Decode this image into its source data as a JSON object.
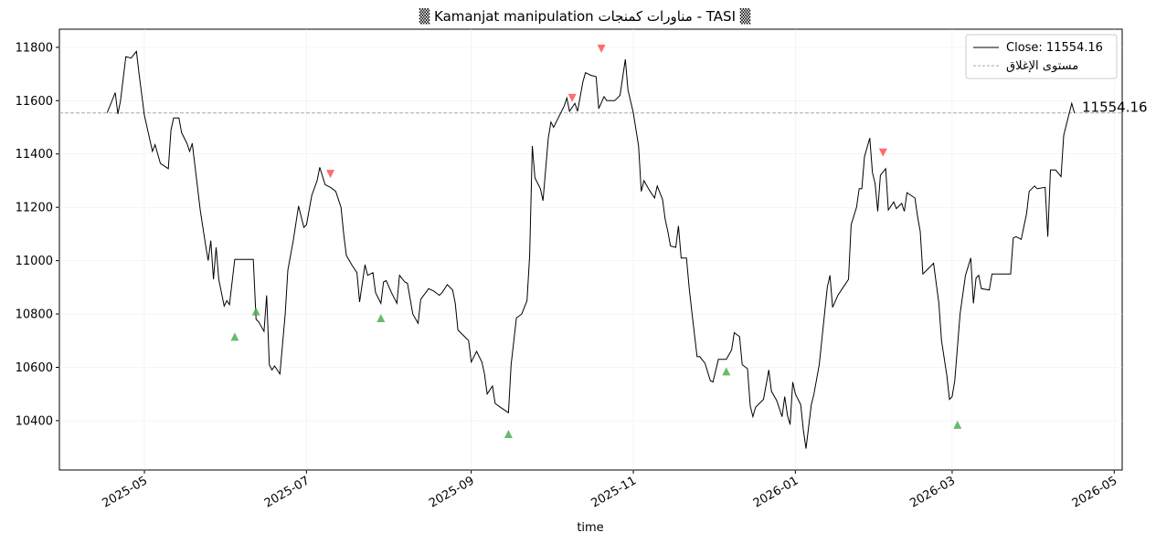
{
  "chart_data": {
    "type": "line",
    "title": "▒  Kamanjat manipulation    مناورات  كمنجات  -  TASI  ▒",
    "x_label": "time",
    "x": [
      20195,
      20198,
      20199,
      20200,
      20202,
      20204,
      20206,
      20207,
      20209,
      20212,
      20213,
      20215,
      20218,
      20219,
      20220,
      20222,
      20223,
      20225,
      20226,
      20227,
      20230,
      20232,
      20233,
      20234,
      20235,
      20236,
      20237,
      20239,
      20240,
      20241,
      20243,
      20246,
      20250,
      20251,
      20252,
      20254,
      20255,
      20256,
      20257,
      20258,
      20260,
      20262,
      20263,
      20265,
      20267,
      20269,
      20270,
      20272,
      20274,
      20275,
      20277,
      20279,
      20281,
      20283,
      20284,
      20285,
      20287,
      20289,
      20290,
      20292,
      20293,
      20295,
      20296,
      20298,
      20299,
      20300,
      20302,
      20304,
      20305,
      20307,
      20308,
      20310,
      20312,
      20313,
      20316,
      20318,
      20320,
      20321,
      20323,
      20325,
      20326,
      20327,
      20329,
      20331,
      20332,
      20334,
      20336,
      20337,
      20338,
      20340,
      20341,
      20343,
      20346,
      20347,
      20349,
      20351,
      20353,
      20354,
      20355,
      20356,
      20358,
      20359,
      20361,
      20362,
      20363,
      20365,
      20367,
      20368,
      20369,
      20371,
      20372,
      20374,
      20375,
      20377,
      20379,
      20380,
      20382,
      20383,
      20386,
      20388,
      20390,
      20391,
      20393,
      20395,
      20396,
      20397,
      20399,
      20401,
      20402,
      20404,
      20405,
      20406,
      20407,
      20409,
      20410,
      20411,
      20413,
      20414,
      20415,
      20417,
      20418,
      20420,
      20422,
      20423,
      20425,
      20428,
      20430,
      20431,
      20433,
      20434,
      20436,
      20437,
      20438,
      20439,
      20442,
      20444,
      20445,
      20447,
      20449,
      20450,
      20451,
      20452,
      20453,
      20454,
      20456,
      20457,
      20458,
      20460,
      20461,
      20463,
      20466,
      20467,
      20468,
      20470,
      20472,
      20474,
      20475,
      20477,
      20478,
      20479,
      20480,
      20482,
      20483,
      20484,
      20485,
      20486,
      20488,
      20489,
      20490,
      20491,
      20492,
      20494,
      20495,
      20496,
      20499,
      20500,
      20501,
      20502,
      20504,
      20506,
      20508,
      20509,
      20511,
      20512,
      20513,
      20514,
      20516,
      20518,
      20520,
      20521,
      20522,
      20523,
      20524,
      20527,
      20528,
      20535,
      20536,
      20537,
      20539,
      20541,
      20542,
      20544,
      20545,
      20548,
      20549,
      20550,
      20552,
      20554,
      20555,
      20556,
      20558,
      20559
    ],
    "series": [
      {
        "name": "Close: 11554.16",
        "color": "#000000",
        "values": [
          11555,
          11630,
          11550,
          11600,
          11765,
          11760,
          11785,
          11700,
          11545,
          11410,
          11435,
          11365,
          11345,
          11490,
          11535,
          11535,
          11480,
          11440,
          11410,
          11440,
          11190,
          11060,
          11000,
          11075,
          10930,
          11050,
          10930,
          10830,
          10850,
          10835,
          11005,
          11005,
          11005,
          10780,
          10770,
          10735,
          10870,
          10610,
          10590,
          10605,
          10575,
          10800,
          10965,
          11075,
          11205,
          11125,
          11135,
          11245,
          11300,
          11350,
          11285,
          11275,
          11260,
          11200,
          11100,
          11020,
          10985,
          10955,
          10845,
          10985,
          10945,
          10955,
          10880,
          10840,
          10920,
          10925,
          10880,
          10840,
          10945,
          10920,
          10915,
          10800,
          10765,
          10855,
          10895,
          10885,
          10870,
          10880,
          10910,
          10890,
          10840,
          10740,
          10720,
          10700,
          10620,
          10660,
          10620,
          10575,
          10500,
          10530,
          10465,
          10450,
          10430,
          10610,
          10785,
          10800,
          10850,
          11020,
          11430,
          11310,
          11270,
          11225,
          11460,
          11520,
          11500,
          11540,
          11580,
          11610,
          11560,
          11590,
          11560,
          11670,
          11705,
          11695,
          11690,
          11570,
          11615,
          11600,
          11600,
          11620,
          11755,
          11640,
          11555,
          11430,
          11260,
          11300,
          11265,
          11235,
          11280,
          11230,
          11155,
          11110,
          11055,
          11050,
          11130,
          11010,
          11010,
          10900,
          10810,
          10640,
          10640,
          10615,
          10550,
          10545,
          10630,
          10630,
          10665,
          10730,
          10715,
          10610,
          10595,
          10455,
          10415,
          10450,
          10480,
          10590,
          10510,
          10475,
          10415,
          10490,
          10420,
          10385,
          10545,
          10500,
          10460,
          10365,
          10295,
          10460,
          10500,
          10610,
          10900,
          10945,
          10825,
          10870,
          10900,
          10930,
          11135,
          11200,
          11270,
          11270,
          11390,
          11460,
          11330,
          11290,
          11185,
          11320,
          11345,
          11190,
          11205,
          11220,
          11195,
          11215,
          11185,
          11255,
          11235,
          11165,
          11110,
          10950,
          10970,
          10990,
          10840,
          10700,
          10570,
          10480,
          10490,
          10550,
          10800,
          10945,
          11010,
          10840,
          10935,
          10945,
          10895,
          10890,
          10950,
          10950,
          11085,
          11090,
          11080,
          11175,
          11260,
          11280,
          11270,
          11275,
          11090,
          11340,
          11340,
          11315,
          11470,
          11510,
          11590,
          11554.16
        ]
      }
    ],
    "buy_signals": {
      "color": "#4caf50",
      "x": [
        20243,
        20251,
        20298,
        20346,
        20428,
        20515
      ],
      "values": [
        10715,
        10810,
        10785,
        10350,
        10585,
        10385
      ]
    },
    "sell_signals": {
      "color": "#ff5252",
      "x": [
        20279,
        20370,
        20381,
        20487
      ],
      "values": [
        11325,
        11610,
        11795,
        11405
      ]
    },
    "reference_line": {
      "name": "مستوى الإغلاق",
      "value": 11554.16,
      "color": "#aaaaaa",
      "label": "11554.16"
    },
    "xlim": [
      20177,
      20577
    ],
    "xticks": [
      {
        "value": 20209,
        "label": "2025-05"
      },
      {
        "value": 20270,
        "label": "2025-07"
      },
      {
        "value": 20332,
        "label": "2025-09"
      },
      {
        "value": 20393,
        "label": "2025-11"
      },
      {
        "value": 20454,
        "label": "2026-01"
      },
      {
        "value": 20513,
        "label": "2026-03"
      },
      {
        "value": 20574,
        "label": "2026-05"
      }
    ],
    "ylim": [
      10215,
      11868
    ],
    "yticks": [
      10400,
      10600,
      10800,
      11000,
      11200,
      11400,
      11600,
      11800
    ],
    "grid": true,
    "legend": "upper right"
  }
}
